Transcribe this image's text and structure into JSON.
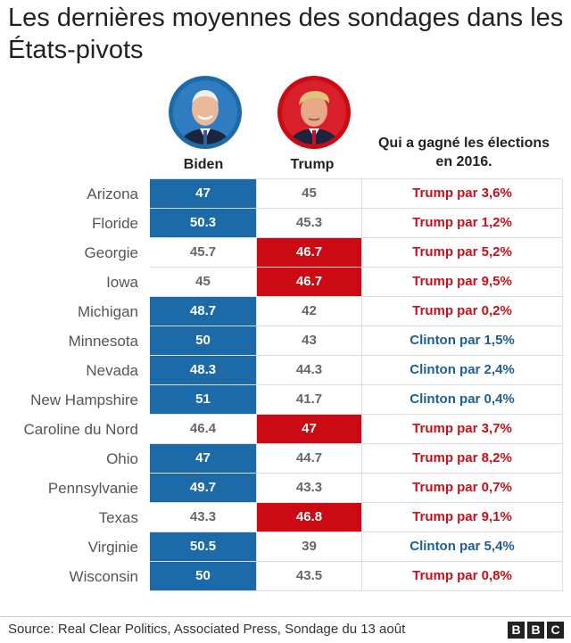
{
  "title": "Les dernières moyennes des sondages dans les États-pivots",
  "colors": {
    "biden": "#1c6aa8",
    "trump": "#cc0a14",
    "clinton_text": "#1d5f94",
    "trump_text": "#c8101a"
  },
  "candidates": {
    "biden": "Biden",
    "trump": "Trump"
  },
  "winner_header": "Qui a gagné les élections en 2016.",
  "source": "Source: Real Clear Politics, Associated Press, Sondage du 13 août",
  "logo": [
    "B",
    "B",
    "C"
  ],
  "chart_data": {
    "type": "table",
    "title": "Les dernières moyennes des sondages dans les États-pivots",
    "columns": [
      "Biden",
      "Trump",
      "Qui a gagné les élections en 2016."
    ],
    "rows": [
      {
        "state": "Arizona",
        "biden": "47",
        "trump": "45",
        "winner": "biden",
        "result": "Trump par 3,6%",
        "party2016": "trump"
      },
      {
        "state": "Floride",
        "biden": "50.3",
        "trump": "45.3",
        "winner": "biden",
        "result": "Trump par 1,2%",
        "party2016": "trump"
      },
      {
        "state": "Georgie",
        "biden": "45.7",
        "trump": "46.7",
        "winner": "trump",
        "result": "Trump par 5,2%",
        "party2016": "trump"
      },
      {
        "state": "Iowa",
        "biden": "45",
        "trump": "46.7",
        "winner": "trump",
        "result": "Trump par 9,5%",
        "party2016": "trump"
      },
      {
        "state": "Michigan",
        "biden": "48.7",
        "trump": "42",
        "winner": "biden",
        "result": "Trump par 0,2%",
        "party2016": "trump"
      },
      {
        "state": "Minnesota",
        "biden": "50",
        "trump": "43",
        "winner": "biden",
        "result": "Clinton par 1,5%",
        "party2016": "clinton"
      },
      {
        "state": "Nevada",
        "biden": "48.3",
        "trump": "44.3",
        "winner": "biden",
        "result": "Clinton par 2,4%",
        "party2016": "clinton"
      },
      {
        "state": "New Hampshire",
        "biden": "51",
        "trump": "41.7",
        "winner": "biden",
        "result": "Clinton par 0,4%",
        "party2016": "clinton"
      },
      {
        "state": "Caroline du Nord",
        "biden": "46.4",
        "trump": "47",
        "winner": "trump",
        "result": "Trump par 3,7%",
        "party2016": "trump"
      },
      {
        "state": "Ohio",
        "biden": "47",
        "trump": "44.7",
        "winner": "biden",
        "result": "Trump par 8,2%",
        "party2016": "trump"
      },
      {
        "state": "Pennsylvanie",
        "biden": "49.7",
        "trump": "43.3",
        "winner": "biden",
        "result": "Trump par 0,7%",
        "party2016": "trump"
      },
      {
        "state": "Texas",
        "biden": "43.3",
        "trump": "46.8",
        "winner": "trump",
        "result": "Trump par 9,1%",
        "party2016": "trump"
      },
      {
        "state": "Virginie",
        "biden": "50.5",
        "trump": "39",
        "winner": "biden",
        "result": "Clinton par 5,4%",
        "party2016": "clinton"
      },
      {
        "state": "Wisconsin",
        "biden": "50",
        "trump": "43.5",
        "winner": "biden",
        "result": "Trump par 0,8%",
        "party2016": "trump"
      }
    ]
  }
}
